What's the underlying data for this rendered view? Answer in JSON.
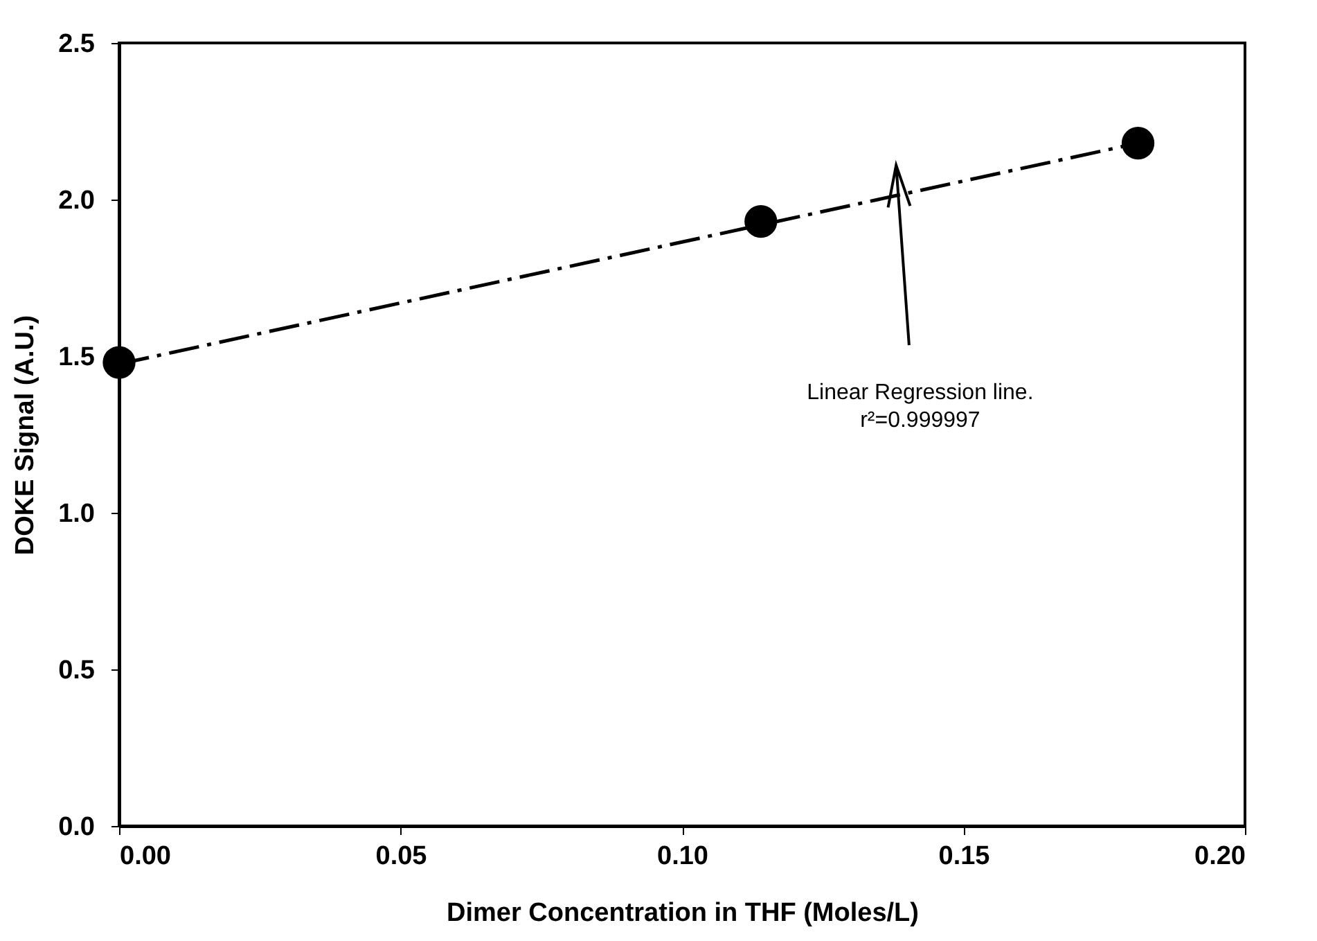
{
  "chart_data": {
    "type": "scatter",
    "xlabel": "Dimer Concentration in THF (Moles/L)",
    "ylabel": "DOKE Signal (A.U.)",
    "xlim": [
      0,
      0.2
    ],
    "ylim": [
      0,
      2.5
    ],
    "xticks": [
      {
        "value": 0,
        "label": "0.00"
      },
      {
        "value": 0.05,
        "label": "0.05"
      },
      {
        "value": 0.1,
        "label": "0.10"
      },
      {
        "value": 0.15,
        "label": "0.15"
      },
      {
        "value": 0.2,
        "label": "0.20"
      }
    ],
    "yticks": [
      {
        "value": 0,
        "label": "0.0"
      },
      {
        "value": 0.5,
        "label": "0.5"
      },
      {
        "value": 1,
        "label": "1.0"
      },
      {
        "value": 1.5,
        "label": "1.5"
      },
      {
        "value": 2,
        "label": "2.0"
      },
      {
        "value": 2.5,
        "label": "2.5"
      }
    ],
    "series": [
      {
        "type": "line",
        "color": "#000000",
        "line_style": "dashed",
        "x": [
          0,
          0.181
        ],
        "values": [
          1.475,
          2.18
        ]
      },
      {
        "color": "#000000",
        "marker": "circle",
        "x": [
          0,
          0.114,
          0.181
        ],
        "values": [
          1.48,
          1.93,
          2.18
        ]
      }
    ],
    "annotations": [
      "Linear Regression line.\nr²=0.999997"
    ]
  }
}
